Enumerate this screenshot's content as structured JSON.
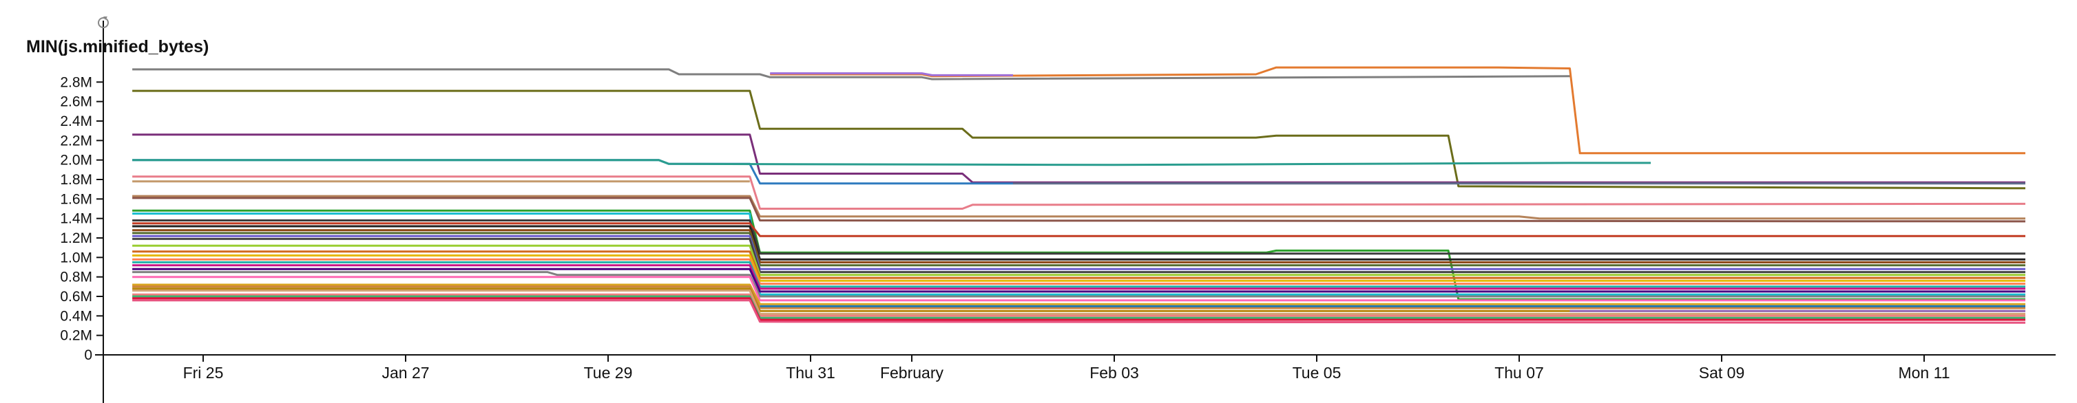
{
  "chart_data": {
    "type": "line",
    "ylabel": "MIN(js.minified_bytes)",
    "ylim": [
      0,
      3.0
    ],
    "y_unit": "M",
    "y_ticks": [
      {
        "value": 0,
        "label": "0"
      },
      {
        "value": 0.2,
        "label": "0.2M"
      },
      {
        "value": 0.4,
        "label": "0.4M"
      },
      {
        "value": 0.6,
        "label": "0.6M"
      },
      {
        "value": 0.8,
        "label": "0.8M"
      },
      {
        "value": 1.0,
        "label": "1.0M"
      },
      {
        "value": 1.2,
        "label": "1.2M"
      },
      {
        "value": 1.4,
        "label": "1.4M"
      },
      {
        "value": 1.6,
        "label": "1.6M"
      },
      {
        "value": 1.8,
        "label": "1.8M"
      },
      {
        "value": 2.0,
        "label": "2.0M"
      },
      {
        "value": 2.2,
        "label": "2.2M"
      },
      {
        "value": 2.4,
        "label": "2.4M"
      },
      {
        "value": 2.6,
        "label": "2.6M"
      },
      {
        "value": 2.8,
        "label": "2.8M"
      }
    ],
    "x_ticks": [
      {
        "value": 1,
        "label": "Fri 25"
      },
      {
        "value": 3,
        "label": "Jan 27"
      },
      {
        "value": 5,
        "label": "Tue 29"
      },
      {
        "value": 7,
        "label": "Thu 31"
      },
      {
        "value": 8,
        "label": "February"
      },
      {
        "value": 10,
        "label": "Feb 03"
      },
      {
        "value": 12,
        "label": "Tue 05"
      },
      {
        "value": 14,
        "label": "Thu 07"
      },
      {
        "value": 16,
        "label": "Sat 09"
      },
      {
        "value": 18,
        "label": "Mon 11"
      }
    ],
    "xlim": [
      0,
      19.3
    ],
    "grid": false,
    "legend": "none",
    "series": [
      {
        "color": "#7f7f7f",
        "points": [
          [
            0.3,
            2.93
          ],
          [
            5.6,
            2.93
          ],
          [
            5.7,
            2.88
          ],
          [
            6.5,
            2.88
          ],
          [
            6.6,
            2.85
          ],
          [
            8.1,
            2.85
          ],
          [
            8.2,
            2.83
          ],
          [
            14.5,
            2.86
          ]
        ]
      },
      {
        "color": "#e37a2f",
        "points": [
          [
            6.6,
            2.88
          ],
          [
            8.1,
            2.88
          ],
          [
            8.2,
            2.86
          ],
          [
            11.4,
            2.88
          ],
          [
            11.6,
            2.95
          ],
          [
            13.8,
            2.95
          ],
          [
            14.5,
            2.94
          ],
          [
            14.6,
            2.07
          ],
          [
            19.0,
            2.07
          ]
        ]
      },
      {
        "color": "#9f6fd8",
        "points": [
          [
            6.6,
            2.89
          ],
          [
            8.1,
            2.89
          ],
          [
            8.2,
            2.87
          ],
          [
            9.0,
            2.87
          ]
        ]
      },
      {
        "color": "#6b6d1a",
        "points": [
          [
            0.3,
            2.71
          ],
          [
            6.4,
            2.71
          ],
          [
            6.5,
            2.32
          ],
          [
            8.5,
            2.32
          ],
          [
            8.6,
            2.23
          ],
          [
            11.4,
            2.23
          ],
          [
            11.6,
            2.25
          ],
          [
            13.3,
            2.25
          ],
          [
            13.4,
            1.73
          ],
          [
            19.0,
            1.71
          ]
        ]
      },
      {
        "color": "#7a2f7a",
        "points": [
          [
            0.3,
            2.26
          ],
          [
            6.4,
            2.26
          ],
          [
            6.5,
            1.86
          ],
          [
            8.5,
            1.86
          ],
          [
            8.6,
            1.77
          ],
          [
            19.0,
            1.77
          ]
        ]
      },
      {
        "color": "#2f7bbf",
        "points": [
          [
            0.3,
            2.0
          ],
          [
            5.5,
            2.0
          ],
          [
            5.6,
            1.96
          ],
          [
            6.4,
            1.96
          ],
          [
            6.5,
            1.76
          ],
          [
            9.0,
            1.76
          ]
        ]
      },
      {
        "color": "#2a9d8f",
        "points": [
          [
            0.3,
            2.0
          ],
          [
            5.5,
            2.0
          ],
          [
            5.6,
            1.96
          ],
          [
            10.0,
            1.95
          ],
          [
            14.5,
            1.97
          ],
          [
            15.3,
            1.97
          ]
        ]
      },
      {
        "color": "#5f6b8a",
        "points": [
          [
            9.0,
            1.76
          ],
          [
            19.0,
            1.76
          ]
        ]
      },
      {
        "color": "#e87d8a",
        "points": [
          [
            0.3,
            1.83
          ],
          [
            6.4,
            1.83
          ],
          [
            6.5,
            1.5
          ],
          [
            8.5,
            1.5
          ],
          [
            8.6,
            1.54
          ],
          [
            19.0,
            1.55
          ]
        ]
      },
      {
        "color": "#c49a6c",
        "points": [
          [
            0.3,
            1.78
          ],
          [
            6.4,
            1.78
          ]
        ]
      },
      {
        "color": "#b5835a",
        "points": [
          [
            0.3,
            1.63
          ],
          [
            6.4,
            1.63
          ],
          [
            6.5,
            1.42
          ],
          [
            14.0,
            1.42
          ],
          [
            14.2,
            1.4
          ],
          [
            19.0,
            1.4
          ]
        ]
      },
      {
        "color": "#8c564b",
        "points": [
          [
            0.3,
            1.61
          ],
          [
            6.4,
            1.61
          ],
          [
            6.5,
            1.38
          ],
          [
            19.0,
            1.37
          ]
        ]
      },
      {
        "color": "#2ca02c",
        "points": [
          [
            0.3,
            1.48
          ],
          [
            6.4,
            1.48
          ],
          [
            6.5,
            1.05
          ],
          [
            11.5,
            1.05
          ],
          [
            11.6,
            1.07
          ],
          [
            13.3,
            1.07
          ],
          [
            13.4,
            0.57
          ],
          [
            19.0,
            0.57
          ]
        ]
      },
      {
        "color": "#17becf",
        "points": [
          [
            0.3,
            1.45
          ],
          [
            6.4,
            1.45
          ],
          [
            6.5,
            0.62
          ],
          [
            19.0,
            0.62
          ]
        ]
      },
      {
        "color": "#3d3d3d",
        "points": [
          [
            0.3,
            1.38
          ],
          [
            6.4,
            1.38
          ],
          [
            6.5,
            1.04
          ],
          [
            19.0,
            1.04
          ]
        ]
      },
      {
        "color": "#c23b22",
        "points": [
          [
            0.3,
            1.35
          ],
          [
            6.4,
            1.35
          ],
          [
            6.5,
            1.22
          ],
          [
            19.0,
            1.22
          ]
        ]
      },
      {
        "color": "#222222",
        "points": [
          [
            0.3,
            1.32
          ],
          [
            6.4,
            1.32
          ],
          [
            6.5,
            0.98
          ],
          [
            19.0,
            0.98
          ]
        ]
      },
      {
        "color": "#8b4513",
        "points": [
          [
            0.3,
            1.28
          ],
          [
            6.4,
            1.28
          ],
          [
            6.5,
            0.95
          ],
          [
            19.0,
            0.95
          ]
        ]
      },
      {
        "color": "#556b2f",
        "points": [
          [
            0.3,
            1.25
          ],
          [
            6.4,
            1.25
          ],
          [
            6.5,
            0.92
          ],
          [
            19.0,
            0.92
          ]
        ]
      },
      {
        "color": "#6a5acd",
        "points": [
          [
            0.3,
            1.22
          ],
          [
            6.4,
            1.22
          ],
          [
            6.5,
            0.88
          ],
          [
            19.0,
            0.88
          ]
        ]
      },
      {
        "color": "#444444",
        "points": [
          [
            0.3,
            1.19
          ],
          [
            6.4,
            1.19
          ],
          [
            6.5,
            0.85
          ],
          [
            19.0,
            0.85
          ]
        ]
      },
      {
        "color": "#9acd32",
        "points": [
          [
            0.3,
            1.12
          ],
          [
            6.4,
            1.12
          ],
          [
            6.5,
            0.82
          ],
          [
            19.0,
            0.82
          ]
        ]
      },
      {
        "color": "#d2691e",
        "points": [
          [
            0.3,
            1.06
          ],
          [
            6.4,
            1.06
          ],
          [
            6.5,
            0.79
          ],
          [
            19.0,
            0.79
          ]
        ]
      },
      {
        "color": "#e6b800",
        "points": [
          [
            0.3,
            1.02
          ],
          [
            6.4,
            1.02
          ],
          [
            6.5,
            0.76
          ],
          [
            19.0,
            0.76
          ]
        ]
      },
      {
        "color": "#ff7f50",
        "points": [
          [
            0.3,
            0.98
          ],
          [
            6.4,
            0.98
          ],
          [
            6.5,
            0.73
          ],
          [
            19.0,
            0.73
          ]
        ]
      },
      {
        "color": "#20b2aa",
        "points": [
          [
            0.3,
            0.95
          ],
          [
            6.4,
            0.95
          ],
          [
            6.5,
            0.7
          ],
          [
            19.0,
            0.7
          ]
        ]
      },
      {
        "color": "#c71585",
        "points": [
          [
            0.3,
            0.92
          ],
          [
            6.4,
            0.92
          ],
          [
            6.5,
            0.68
          ],
          [
            19.0,
            0.68
          ]
        ]
      },
      {
        "color": "#4b0082",
        "points": [
          [
            0.3,
            0.88
          ],
          [
            6.4,
            0.88
          ],
          [
            6.5,
            0.65
          ],
          [
            19.0,
            0.65
          ]
        ]
      },
      {
        "color": "#808080",
        "points": [
          [
            0.3,
            0.85
          ],
          [
            4.4,
            0.85
          ],
          [
            4.5,
            0.82
          ],
          [
            6.4,
            0.82
          ],
          [
            6.5,
            0.6
          ],
          [
            19.0,
            0.6
          ]
        ]
      },
      {
        "color": "#ff69b4",
        "points": [
          [
            0.3,
            0.8
          ],
          [
            6.4,
            0.8
          ],
          [
            6.5,
            0.56
          ],
          [
            19.0,
            0.56
          ]
        ]
      },
      {
        "color": "#daa520",
        "points": [
          [
            0.3,
            0.72
          ],
          [
            6.4,
            0.72
          ],
          [
            6.5,
            0.52
          ],
          [
            19.0,
            0.52
          ]
        ]
      },
      {
        "color": "#cd853f",
        "points": [
          [
            0.3,
            0.7
          ],
          [
            6.4,
            0.7
          ],
          [
            6.5,
            0.48
          ],
          [
            19.0,
            0.48
          ]
        ]
      },
      {
        "color": "#b8860b",
        "points": [
          [
            0.3,
            0.68
          ],
          [
            6.4,
            0.68
          ],
          [
            6.5,
            0.45
          ],
          [
            19.0,
            0.45
          ]
        ]
      },
      {
        "color": "#d4a373",
        "points": [
          [
            0.3,
            0.66
          ],
          [
            6.4,
            0.66
          ],
          [
            6.5,
            0.42
          ],
          [
            19.0,
            0.42
          ]
        ]
      },
      {
        "color": "#f08080",
        "points": [
          [
            0.3,
            0.62
          ],
          [
            6.4,
            0.62
          ],
          [
            6.5,
            0.4
          ],
          [
            19.0,
            0.4
          ]
        ]
      },
      {
        "color": "#3cb371",
        "points": [
          [
            0.3,
            0.6
          ],
          [
            6.4,
            0.6
          ],
          [
            6.5,
            0.38
          ],
          [
            19.0,
            0.38
          ]
        ]
      },
      {
        "color": "#dc143c",
        "points": [
          [
            0.3,
            0.58
          ],
          [
            6.4,
            0.58
          ],
          [
            6.5,
            0.36
          ],
          [
            19.0,
            0.36
          ]
        ]
      },
      {
        "color": "#e75480",
        "points": [
          [
            0.3,
            0.56
          ],
          [
            6.4,
            0.56
          ],
          [
            6.5,
            0.34
          ],
          [
            19.0,
            0.33
          ]
        ]
      },
      {
        "color": "#9467bd",
        "points": [
          [
            14.5,
            0.45
          ],
          [
            19.0,
            0.45
          ]
        ]
      },
      {
        "color": "#1f77b4",
        "points": [
          [
            6.5,
            0.5
          ],
          [
            19.0,
            0.5
          ]
        ]
      }
    ]
  }
}
